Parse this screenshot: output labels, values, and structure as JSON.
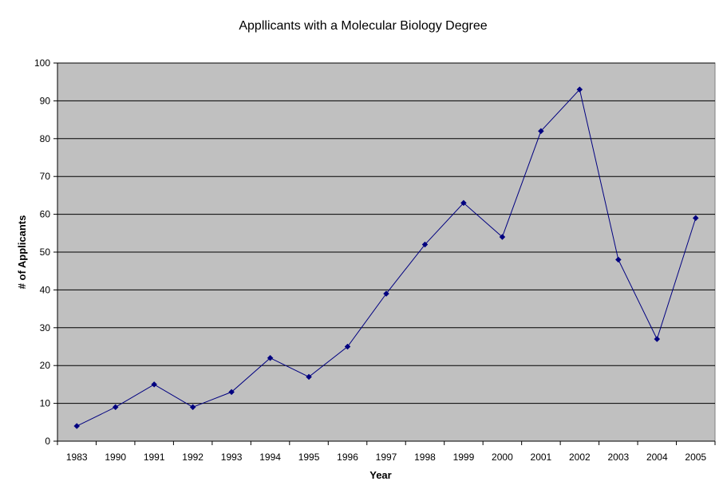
{
  "chart_data": {
    "type": "line",
    "title": "Appllicants with a Molecular Biology Degree",
    "xlabel": "Year",
    "ylabel": "# of Applicants",
    "categories": [
      "1983",
      "1990",
      "1991",
      "1992",
      "1993",
      "1994",
      "1995",
      "1996",
      "1997",
      "1998",
      "1999",
      "2000",
      "2001",
      "2002",
      "2003",
      "2004",
      "2005"
    ],
    "series": [
      {
        "values": [
          4,
          9,
          15,
          9,
          13,
          22,
          17,
          25,
          39,
          52,
          63,
          54,
          82,
          93,
          48,
          27,
          59
        ]
      }
    ],
    "ylim": [
      0,
      100
    ],
    "yticks": [
      0,
      10,
      20,
      30,
      40,
      50,
      60,
      70,
      80,
      90,
      100
    ],
    "grid": "horizontal",
    "legend": "none",
    "colors": {
      "plot_background": "#c0c0c0",
      "line": "#000080",
      "marker": "#000080",
      "gridline": "#000000"
    }
  }
}
